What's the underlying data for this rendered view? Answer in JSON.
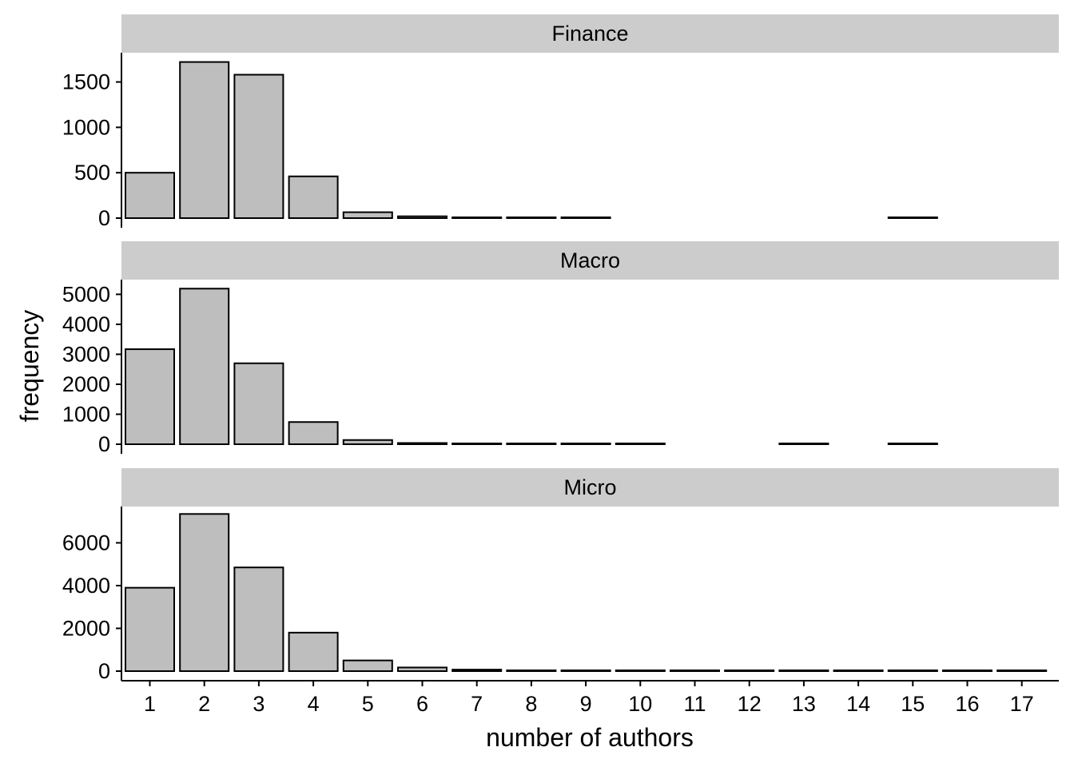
{
  "chart_data": {
    "type": "bar",
    "xlabel": "number of authors",
    "ylabel": "frequency",
    "categories": [
      "1",
      "2",
      "3",
      "4",
      "5",
      "6",
      "7",
      "8",
      "9",
      "10",
      "11",
      "12",
      "13",
      "14",
      "15",
      "16",
      "17"
    ],
    "colors": {
      "bar_fill": "#bebebe",
      "bar_stroke": "#000000",
      "strip_fill": "#cccccc"
    },
    "facets": [
      {
        "label": "Finance",
        "ylim": [
          0,
          1800
        ],
        "yticks": [
          0,
          500,
          1000,
          1500
        ],
        "values": [
          500,
          1720,
          1580,
          460,
          65,
          20,
          5,
          3,
          2,
          null,
          null,
          null,
          null,
          null,
          1,
          null,
          null
        ]
      },
      {
        "label": "Macro",
        "ylim": [
          0,
          5500
        ],
        "yticks": [
          0,
          1000,
          2000,
          3000,
          4000,
          5000
        ],
        "values": [
          3170,
          5190,
          2700,
          740,
          140,
          40,
          10,
          5,
          3,
          2,
          null,
          null,
          1,
          null,
          1,
          null,
          null
        ]
      },
      {
        "label": "Micro",
        "ylim": [
          0,
          7500
        ],
        "yticks": [
          0,
          2000,
          4000,
          6000
        ],
        "values": [
          3900,
          7350,
          4850,
          1800,
          500,
          170,
          70,
          30,
          15,
          10,
          8,
          5,
          4,
          3,
          3,
          2,
          2
        ]
      }
    ]
  }
}
